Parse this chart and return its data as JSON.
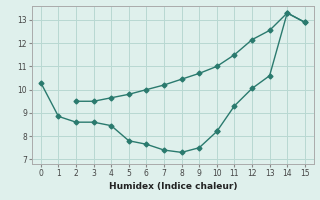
{
  "line1_x": [
    0,
    1,
    2,
    3,
    4,
    5,
    6,
    7,
    8,
    9,
    10
  ],
  "line1_y": [
    10.3,
    8.85,
    8.6,
    8.6,
    8.45,
    7.8,
    7.65,
    7.4,
    7.3,
    7.5,
    8.2
  ],
  "line2_x": [
    2,
    3,
    4,
    5,
    6,
    7,
    8,
    9,
    10,
    11,
    12,
    13,
    14,
    15
  ],
  "line2_y": [
    9.5,
    9.5,
    9.65,
    9.8,
    10.0,
    10.2,
    10.45,
    10.7,
    11.0,
    11.5,
    12.15,
    12.55,
    13.3,
    12.9
  ],
  "line3_x": [
    10,
    11,
    12,
    13,
    14,
    15
  ],
  "line3_y": [
    8.2,
    9.3,
    10.05,
    10.6,
    13.3,
    12.9
  ],
  "line_color": "#2a7a6e",
  "bg_color": "#dff0ec",
  "grid_color": "#b8d8d2",
  "xlabel": "Humidex (Indice chaleur)",
  "xlim": [
    -0.5,
    15.5
  ],
  "ylim": [
    6.8,
    13.6
  ],
  "xticks": [
    0,
    1,
    2,
    3,
    4,
    5,
    6,
    7,
    8,
    9,
    10,
    11,
    12,
    13,
    14,
    15
  ],
  "yticks": [
    7,
    8,
    9,
    10,
    11,
    12,
    13
  ],
  "marker": "D",
  "markersize": 2.5,
  "linewidth": 1.0
}
